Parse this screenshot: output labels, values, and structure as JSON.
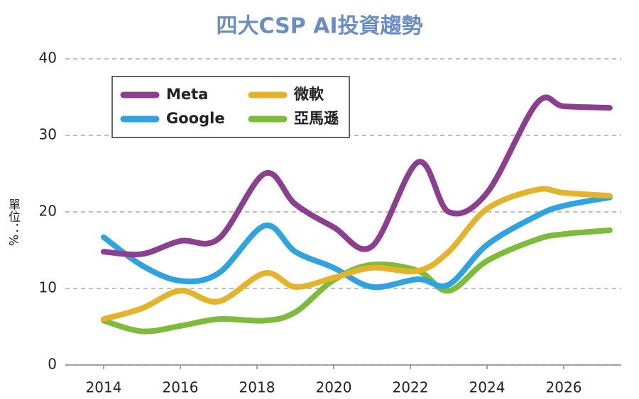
{
  "chart_data": {
    "type": "line",
    "title": "四大CSP AI投資趨勢",
    "y_label": "單位：%",
    "x": [
      2014,
      2015,
      2016,
      2017,
      2018.2,
      2019,
      2020,
      2021,
      2022.2,
      2023,
      2024,
      2025.3,
      2026,
      2027.2
    ],
    "series": [
      {
        "name": "Meta",
        "color": "#8c3f8f",
        "values": [
          14.8,
          14.5,
          16.2,
          16.5,
          25,
          21,
          18,
          15.5,
          26.5,
          20,
          22.5,
          34.2,
          33.8,
          33.6
        ]
      },
      {
        "name": "微軟",
        "color": "#e3b32a",
        "values": [
          6,
          7.4,
          9.7,
          8.3,
          12,
          10.2,
          11.4,
          12.7,
          12.3,
          14.8,
          20.4,
          22.9,
          22.5,
          22.1
        ]
      },
      {
        "name": "Google",
        "color": "#2ea3e0",
        "values": [
          16.7,
          13,
          11,
          12,
          18.2,
          14.8,
          12.7,
          10.2,
          11.2,
          10.5,
          15.7,
          19.5,
          20.8,
          21.9
        ]
      },
      {
        "name": "亞馬遜",
        "color": "#7dbb3b",
        "values": [
          5.8,
          4.4,
          5.1,
          6,
          5.8,
          6.9,
          11.1,
          13.1,
          12.3,
          9.7,
          13.6,
          16.4,
          17.1,
          17.6
        ]
      }
    ],
    "xlim": [
      2013,
      2027.5
    ],
    "xticks": [
      2014,
      2016,
      2018,
      2020,
      2022,
      2024,
      2026
    ],
    "ylim": [
      0,
      40
    ],
    "yticks": [
      0,
      10,
      20,
      30,
      40
    ],
    "grid": true,
    "legend": "top-left"
  }
}
